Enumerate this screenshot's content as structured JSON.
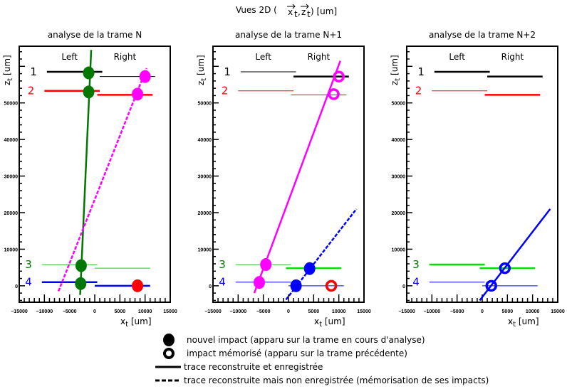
{
  "title": "Vues 2D (x_t, z_t) [um]",
  "title_parts": {
    "prefix": "Vues 2D (",
    "x": "x",
    "sub_x": "t",
    "sep": ",",
    "z": "z",
    "sub_z": "t",
    "suffix": ") [um]"
  },
  "chart_data": [
    {
      "type": "line",
      "title": "analyse de la trame N",
      "xlabel": "x_t [um]",
      "ylabel": "z_t [um]",
      "xlim": [
        -15000,
        15000
      ],
      "ylim": [
        -4500,
        65500
      ],
      "xticks": [
        -15000,
        -10000,
        -5000,
        0,
        5000,
        10000,
        15000
      ],
      "xtick_labels": [
        "-15000",
        "-10000",
        "-5000",
        "0",
        "5000",
        "10000",
        "15000"
      ],
      "yticks": [
        0,
        10000,
        20000,
        30000,
        40000,
        50000
      ],
      "ytick_labels": [
        "0",
        "10000",
        "20000",
        "30000",
        "40000",
        "50000"
      ],
      "side_labels": [
        "Left",
        "Right"
      ],
      "planes": [
        {
          "name": "1",
          "color": "#000000",
          "left": {
            "x": [
              -9500,
              1500
            ],
            "z": 58500,
            "w": 2.5
          },
          "right": {
            "x": [
              1000,
              12000
            ],
            "z": 57200,
            "w": 1
          }
        },
        {
          "name": "2",
          "color": "#ff0000",
          "left": {
            "x": [
              -10000,
              1000
            ],
            "z": 53300,
            "w": 2.5
          },
          "right": {
            "x": [
              500,
              11500
            ],
            "z": 52200,
            "w": 2.5
          }
        },
        {
          "name": "3",
          "color": "#00dd00",
          "label_color": "#007700",
          "left": {
            "x": [
              -10500,
              500
            ],
            "z": 5800,
            "w": 1
          },
          "right": {
            "x": [
              0,
              11000
            ],
            "z": 4800,
            "w": 1
          }
        },
        {
          "name": "4",
          "color": "#0000ff",
          "left": {
            "x": [
              -10500,
              500
            ],
            "z": 1000,
            "w": 2.5
          },
          "right": {
            "x": [
              0,
              11000
            ],
            "z": 0,
            "w": 2.5
          }
        }
      ],
      "tracks": [
        {
          "color": "#007700",
          "style": "solid",
          "from": [
            -2900,
            -2500
          ],
          "to": [
            -700,
            64500
          ]
        },
        {
          "color": "#ff00ff",
          "style": "dashed",
          "from": [
            -7200,
            -1500
          ],
          "to": [
            10300,
            59500
          ]
        }
      ],
      "impacts": [
        {
          "x": -1200,
          "z": 58200,
          "color": "#007700",
          "kind": "new"
        },
        {
          "x": -1200,
          "z": 53000,
          "color": "#007700",
          "kind": "new"
        },
        {
          "x": -2700,
          "z": 5500,
          "color": "#007700",
          "kind": "new"
        },
        {
          "x": -2800,
          "z": 600,
          "color": "#007700",
          "kind": "new"
        },
        {
          "x": 10000,
          "z": 57200,
          "color": "#ff00ff",
          "kind": "new"
        },
        {
          "x": 8500,
          "z": 52400,
          "color": "#ff00ff",
          "kind": "new"
        },
        {
          "x": 8500,
          "z": 0,
          "color": "#ff0000",
          "kind": "new"
        }
      ]
    },
    {
      "type": "line",
      "title": "analyse de la trame N+1",
      "xlabel": "x_t [um]",
      "ylabel": "z_t [um]",
      "xlim": [
        -15000,
        15000
      ],
      "ylim": [
        -4500,
        65500
      ],
      "xticks": [
        -15000,
        -10000,
        -5000,
        0,
        5000,
        10000,
        15000
      ],
      "xtick_labels": [
        "-15000",
        "-10000",
        "-5000",
        "0",
        "5000",
        "10000",
        "15000"
      ],
      "yticks": [
        0,
        10000,
        20000,
        30000,
        40000,
        50000
      ],
      "ytick_labels": [
        "0",
        "10000",
        "20000",
        "30000",
        "40000",
        "50000"
      ],
      "side_labels": [
        "Left",
        "Right"
      ],
      "planes": [
        {
          "name": "1",
          "color": "#000000",
          "left": {
            "x": [
              -9500,
              1500
            ],
            "z": 58500,
            "w": 1
          },
          "right": {
            "x": [
              1000,
              12000
            ],
            "z": 57200,
            "w": 2.5
          }
        },
        {
          "name": "2",
          "color": "#ff0000",
          "left": {
            "x": [
              -10000,
              1000
            ],
            "z": 53300,
            "w": 1
          },
          "right": {
            "x": [
              500,
              11500
            ],
            "z": 52200,
            "w": 1
          }
        },
        {
          "name": "3",
          "color": "#00dd00",
          "label_color": "#007700",
          "left": {
            "x": [
              -10500,
              500
            ],
            "z": 5800,
            "w": 1
          },
          "right": {
            "x": [
              -500,
              10500
            ],
            "z": 4800,
            "w": 2.5
          }
        },
        {
          "name": "4",
          "color": "#0000ff",
          "left": {
            "x": [
              -10500,
              500
            ],
            "z": 1000,
            "w": 1
          },
          "right": {
            "x": [
              0,
              11000
            ],
            "z": 0,
            "w": 1
          }
        }
      ],
      "tracks": [
        {
          "color": "#ff00ff",
          "style": "solid",
          "from": [
            -6800,
            -2000
          ],
          "to": [
            10300,
            61500
          ]
        },
        {
          "color": "#0000ff",
          "style": "dashed",
          "from": [
            -500,
            -3800
          ],
          "to": [
            13500,
            21000
          ]
        }
      ],
      "impacts": [
        {
          "x": 10000,
          "z": 57200,
          "color": "#ff00ff",
          "kind": "memorized"
        },
        {
          "x": 9000,
          "z": 52400,
          "color": "#ff00ff",
          "kind": "memorized"
        },
        {
          "x": -4500,
          "z": 5800,
          "color": "#ff00ff",
          "kind": "new"
        },
        {
          "x": -5800,
          "z": 900,
          "color": "#ff00ff",
          "kind": "new"
        },
        {
          "x": 4200,
          "z": 4700,
          "color": "#0000ff",
          "kind": "new"
        },
        {
          "x": 1500,
          "z": 0,
          "color": "#0000ff",
          "kind": "new"
        },
        {
          "x": 8500,
          "z": 0,
          "color": "#ff0000",
          "kind": "memorized"
        }
      ]
    },
    {
      "type": "line",
      "title": "analyse de la trame N+2",
      "xlabel": "x_t [um]",
      "ylabel": "z_t [um]",
      "xlim": [
        -15000,
        15000
      ],
      "ylim": [
        -4500,
        65500
      ],
      "xticks": [
        -15000,
        -10000,
        -5000,
        0,
        5000,
        10000,
        15000
      ],
      "xtick_labels": [
        "-15000",
        "-10000",
        "-5000",
        "0",
        "5000",
        "10000",
        "15000"
      ],
      "yticks": [
        0,
        10000,
        20000,
        30000,
        40000,
        50000
      ],
      "ytick_labels": [
        "0",
        "10000",
        "20000",
        "30000",
        "40000",
        "50000"
      ],
      "side_labels": [
        "Left",
        "Right"
      ],
      "planes": [
        {
          "name": "1",
          "color": "#000000",
          "left": {
            "x": [
              -9500,
              1500
            ],
            "z": 58500,
            "w": 2.5
          },
          "right": {
            "x": [
              1000,
              12000
            ],
            "z": 57200,
            "w": 2.5
          }
        },
        {
          "name": "2",
          "color": "#ff0000",
          "left": {
            "x": [
              -10000,
              1000
            ],
            "z": 53300,
            "w": 1
          },
          "right": {
            "x": [
              500,
              11500
            ],
            "z": 52200,
            "w": 2.5
          }
        },
        {
          "name": "3",
          "color": "#00dd00",
          "label_color": "#007700",
          "left": {
            "x": [
              -10500,
              500
            ],
            "z": 5800,
            "w": 2.5
          },
          "right": {
            "x": [
              -500,
              10500
            ],
            "z": 4800,
            "w": 2.5
          }
        },
        {
          "name": "4",
          "color": "#0000ff",
          "left": {
            "x": [
              -10500,
              500
            ],
            "z": 1000,
            "w": 1
          },
          "right": {
            "x": [
              0,
              11000
            ],
            "z": 0,
            "w": 1
          }
        }
      ],
      "tracks": [
        {
          "color": "#0000ff",
          "style": "solid",
          "from": [
            -500,
            -4000
          ],
          "to": [
            13500,
            21000
          ]
        }
      ],
      "impacts": [
        {
          "x": 4500,
          "z": 4800,
          "color": "#0000ff",
          "kind": "memorized"
        },
        {
          "x": 1800,
          "z": 0,
          "color": "#0000ff",
          "kind": "memorized"
        }
      ]
    }
  ],
  "legend": [
    {
      "symbol": "filled-circle",
      "label": "nouvel impact (apparu sur la trame en cours d'analyse)"
    },
    {
      "symbol": "open-circle",
      "label": "impact mémorisé (apparu sur la trame précédente)"
    },
    {
      "symbol": "solid-line",
      "label": "trace reconstruite et enregistrée"
    },
    {
      "symbol": "dashed-line",
      "label": "trace reconstruite mais non enregistrée (mémorisation de ses impacts)"
    }
  ]
}
